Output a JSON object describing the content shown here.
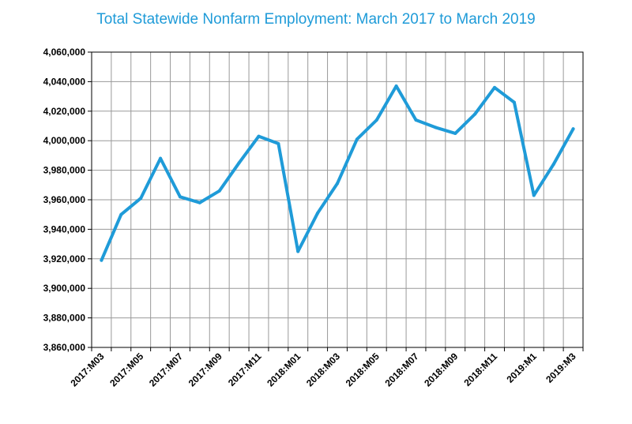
{
  "chart_data": {
    "type": "line",
    "title": "Total Statewide Nonfarm Employment:  March 2017 to March 2019",
    "xlabel": "",
    "ylabel": "",
    "ylim": [
      3860000,
      4060000
    ],
    "y_ticks": [
      "3,860,000",
      "3,880,000",
      "3,900,000",
      "3,920,000",
      "3,940,000",
      "3,960,000",
      "3,980,000",
      "4,000,000",
      "4,020,000",
      "4,040,000",
      "4,060,000"
    ],
    "x": [
      "2017:M03",
      "2017:M04",
      "2017:M05",
      "2017:M06",
      "2017:M07",
      "2017:M08",
      "2017:M09",
      "2017:M10",
      "2017:M11",
      "2017:M12",
      "2018:M01",
      "2018:M02",
      "2018:M03",
      "2018:M04",
      "2018:M05",
      "2018:M06",
      "2018:M07",
      "2018:M08",
      "2018:M09",
      "2018:M10",
      "2018:M11",
      "2018:M12",
      "2019:M1",
      "2019:M2",
      "2019:M3"
    ],
    "x_tick_labels": [
      "2017:M03",
      "2017:M05",
      "2017:M07",
      "2017:M09",
      "2017:M11",
      "2018:M01",
      "2018:M03",
      "2018:M05",
      "2018:M07",
      "2018:M09",
      "2018:M11",
      "2019:M1",
      "2019:M3"
    ],
    "series": [
      {
        "values": [
          3919000,
          3950000,
          3961000,
          3988000,
          3962000,
          3958000,
          3966000,
          3985000,
          4003000,
          3998000,
          3925000,
          3951000,
          3971000,
          4001000,
          4014000,
          4037000,
          4014000,
          4009000,
          4005000,
          4018000,
          4036000,
          4026000,
          3963000,
          3984000,
          4008000
        ],
        "color": "#1f9bd8"
      }
    ],
    "grid": true,
    "legend": "none"
  }
}
